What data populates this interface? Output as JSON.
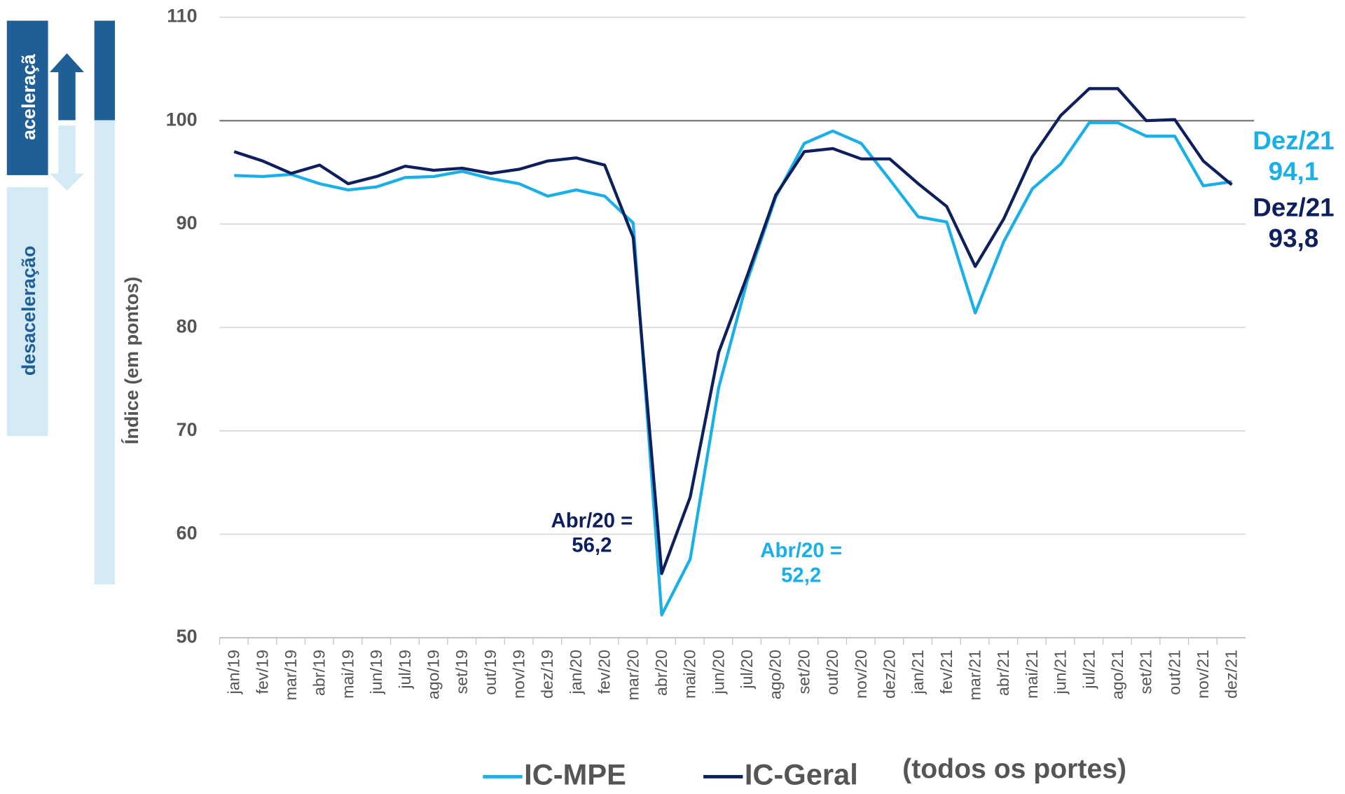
{
  "chart_data": {
    "type": "line",
    "y_label": "Índice (em pontos)",
    "categories": [
      "jan/19",
      "fev/19",
      "mar/19",
      "abr/19",
      "mai/19",
      "jun/19",
      "jul/19",
      "ago/19",
      "set/19",
      "out/19",
      "nov/19",
      "dez/19",
      "jan/20",
      "fev/20",
      "mar/20",
      "abr/20",
      "mai/20",
      "jun/20",
      "jul/20",
      "ago/20",
      "set/20",
      "out/20",
      "nov/20",
      "dez/20",
      "jan/21",
      "fev/21",
      "mar/21",
      "abr/21",
      "mai/21",
      "jun/21",
      "jul/21",
      "ago/21",
      "set/21",
      "out/21",
      "nov/21",
      "dez/21"
    ],
    "series": [
      {
        "name": "IC-MPE",
        "color": "#1aafe6",
        "values": [
          94.7,
          94.6,
          94.8,
          93.9,
          93.3,
          93.6,
          94.5,
          94.6,
          95.1,
          94.4,
          93.9,
          92.7,
          93.3,
          92.7,
          90.1,
          52.2,
          57.6,
          74.2,
          84.5,
          92.6,
          97.8,
          99.0,
          97.8,
          94.3,
          90.7,
          90.2,
          81.4,
          88.3,
          93.4,
          95.8,
          99.8,
          99.8,
          98.5,
          98.5,
          93.7,
          94.1
        ]
      },
      {
        "name": "IC-Geral",
        "color": "#0d1f5c",
        "values": [
          97.0,
          96.1,
          94.9,
          95.7,
          93.9,
          94.6,
          95.6,
          95.2,
          95.4,
          94.9,
          95.3,
          96.1,
          96.4,
          95.7,
          88.7,
          56.2,
          63.6,
          77.6,
          85.0,
          92.8,
          97.0,
          97.3,
          96.3,
          96.3,
          93.9,
          91.7,
          85.9,
          90.5,
          96.5,
          100.5,
          103.1,
          103.1,
          100.0,
          100.1,
          96.1,
          93.8
        ]
      }
    ],
    "legend_note": "(todos os portes)",
    "ylim": [
      50,
      110
    ],
    "yticks": [
      50,
      60,
      70,
      80,
      90,
      100,
      110
    ],
    "grid": true,
    "reference_line": 100,
    "annotations": [
      {
        "lines": [
          "Abr/20 =",
          "56,2"
        ],
        "series": 1
      },
      {
        "lines": [
          "Abr/20 =",
          "52,2"
        ],
        "series": 0
      },
      {
        "lines": [
          "Dez/21",
          "94,1"
        ],
        "series": 0
      },
      {
        "lines": [
          "Dez/21",
          "93,8"
        ],
        "series": 1
      }
    ],
    "side_labels": [
      "aceleraçã",
      "desaceleração"
    ]
  }
}
